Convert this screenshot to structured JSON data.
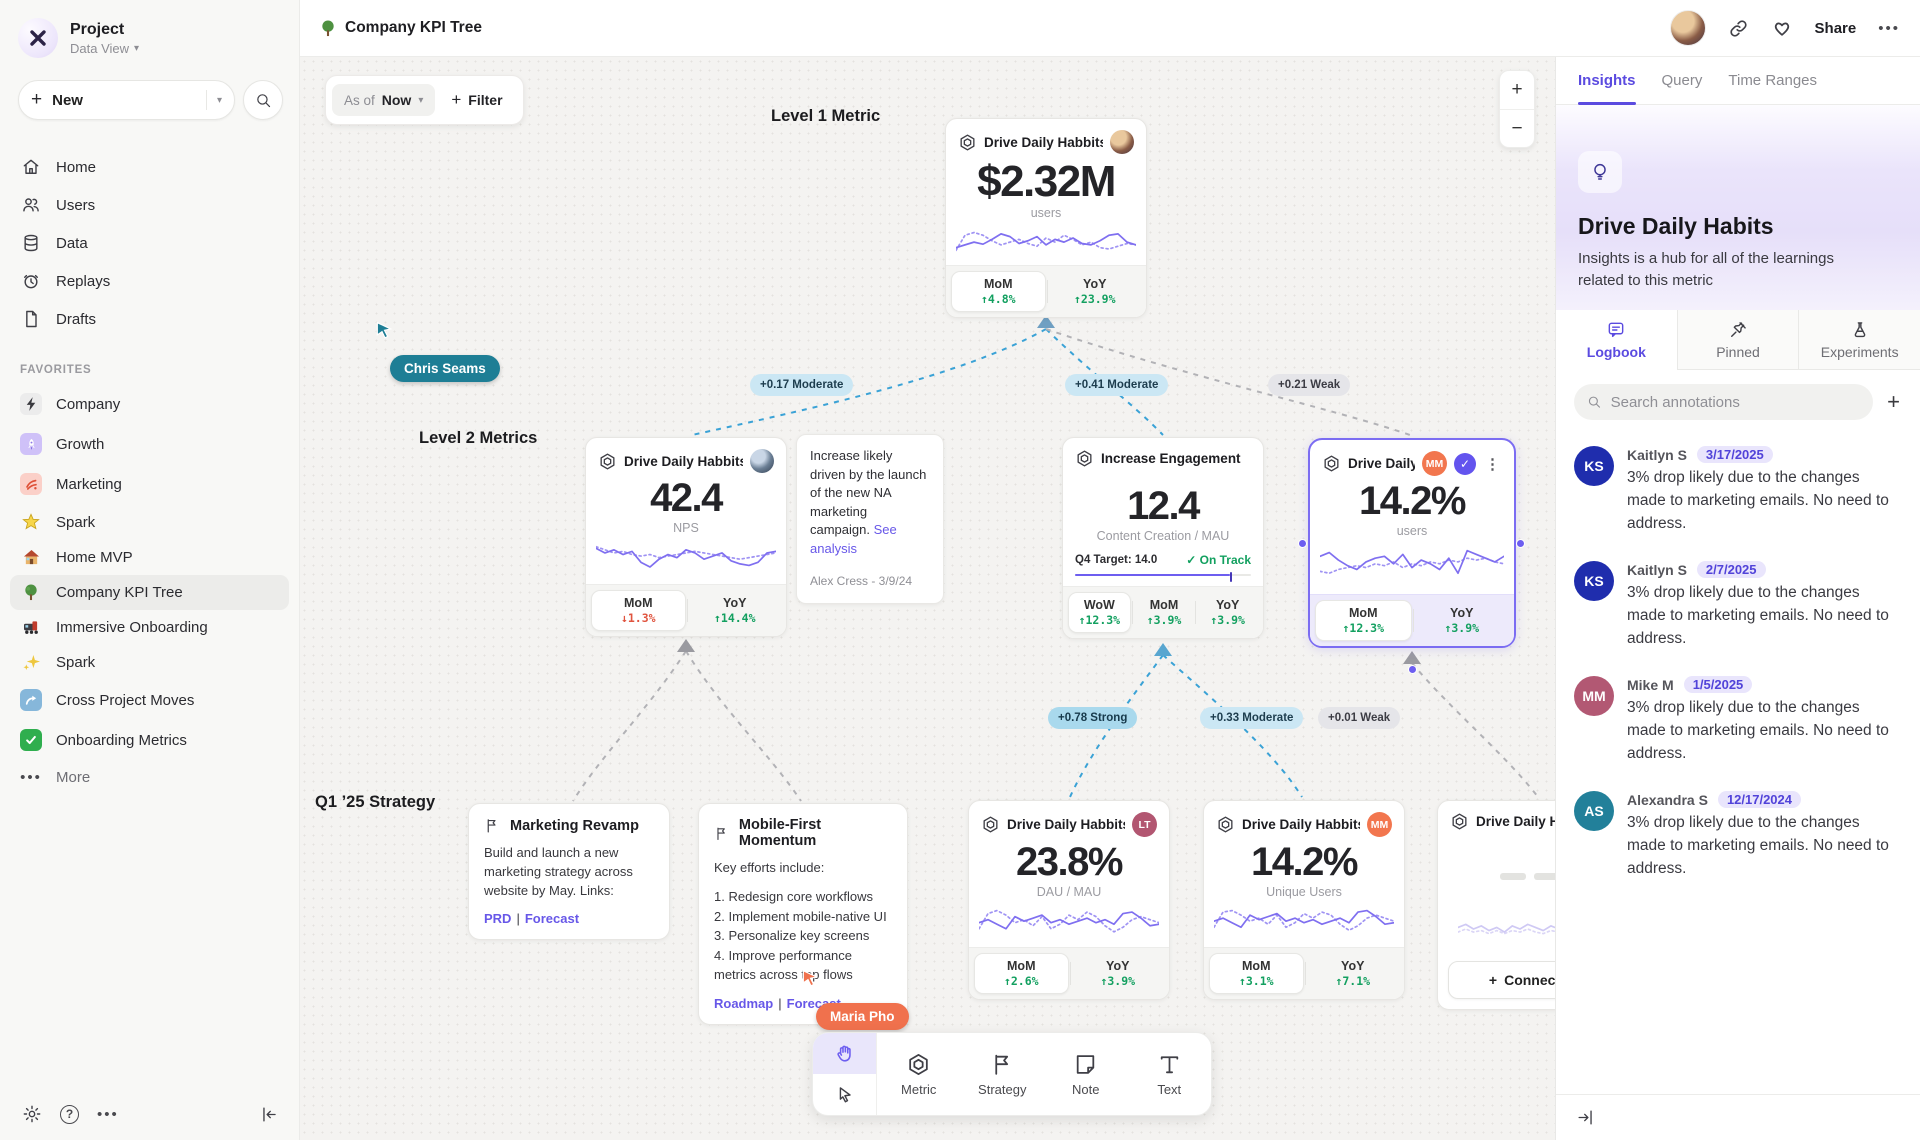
{
  "sidebar": {
    "project_name": "Project",
    "project_view": "Data View",
    "new_label": "New",
    "nav": [
      {
        "label": "Home"
      },
      {
        "label": "Users"
      },
      {
        "label": "Data"
      },
      {
        "label": "Replays"
      },
      {
        "label": "Drafts"
      }
    ],
    "favorites_label": "FAVORITES",
    "favorites": [
      {
        "label": "Company"
      },
      {
        "label": "Growth"
      },
      {
        "label": "Marketing"
      },
      {
        "label": "Spark"
      },
      {
        "label": "Home MVP"
      },
      {
        "label": "Company KPI Tree"
      },
      {
        "label": "Immersive Onboarding"
      },
      {
        "label": "Spark"
      },
      {
        "label": "Cross Project Moves"
      },
      {
        "label": "Onboarding Metrics"
      }
    ],
    "more_label": "More"
  },
  "topbar": {
    "title": "Company KPI Tree",
    "share_label": "Share"
  },
  "canvas": {
    "asof_prefix": "As of",
    "asof_value": "Now",
    "filter_label": "Filter",
    "zoom_in": "+",
    "zoom_out": "−",
    "link_separator": "|",
    "labels": {
      "level1": "Level 1 Metric",
      "level2": "Level 2 Metrics",
      "strategy": "Q1 ’25 Strategy"
    },
    "cursors": [
      {
        "name": "Chris Seams",
        "color": "#1e7e95"
      },
      {
        "name": "Maria Pho",
        "color": "#f0714d"
      }
    ],
    "edge_labels": [
      "+0.17 Moderate",
      "+0.41 Moderate",
      "+0.21 Weak",
      "+0.78 Strong",
      "+0.33 Moderate",
      "+0.01 Weak"
    ],
    "cards": {
      "level1": {
        "title": "Drive Daily Habbits",
        "value": "$2.32M",
        "unit": "users",
        "stats": [
          {
            "label": "MoM",
            "change": "↑4.8%"
          },
          {
            "label": "YoY",
            "change": "↑23.9%"
          }
        ],
        "spark": {
          "solid": [
            30,
            26,
            22,
            25,
            18,
            10,
            14,
            24,
            20,
            14,
            26,
            18,
            22,
            16,
            24,
            26,
            20,
            12,
            10,
            22,
            26
          ],
          "dotted": [
            34,
            12,
            8,
            12,
            20,
            26,
            22,
            18,
            24,
            28,
            16,
            22,
            12,
            18,
            26,
            22,
            30,
            32,
            28,
            24,
            26
          ]
        }
      },
      "nps": {
        "title": "Drive Daily Habbits",
        "value": "42.4",
        "unit": "NPS",
        "stats": [
          {
            "label": "MoM",
            "change": "↓1.3%"
          },
          {
            "label": "YoY",
            "change": "↑14.4%"
          }
        ],
        "spark": {
          "solid": [
            8,
            14,
            10,
            16,
            12,
            26,
            32,
            22,
            16,
            20,
            10,
            14,
            22,
            18,
            14,
            24,
            28,
            30,
            26,
            14,
            12
          ],
          "dotted": [
            6,
            10,
            14,
            12,
            16,
            18,
            16,
            20,
            18,
            16,
            14,
            12,
            14,
            16,
            18,
            20,
            22,
            20,
            18,
            16,
            14
          ]
        }
      },
      "engagement": {
        "title": "Increase Engagement",
        "value": "12.4",
        "unit": "Content Creation / MAU",
        "target": "Q4 Target: 14.0",
        "status": "✓ On Track",
        "stats": [
          {
            "label": "WoW",
            "change": "↑12.3%"
          },
          {
            "label": "MoM",
            "change": "↑3.9%"
          },
          {
            "label": "YoY",
            "change": "↑3.9%"
          }
        ]
      },
      "selected": {
        "title": "Drive Daily Habb..",
        "badge": "MM",
        "value": "14.2%",
        "unit": "users",
        "stats": [
          {
            "label": "MoM",
            "change": "↑12.3%"
          },
          {
            "label": "YoY",
            "change": "↑3.9%"
          }
        ],
        "spark": {
          "solid": [
            12,
            8,
            16,
            22,
            26,
            18,
            14,
            12,
            20,
            10,
            24,
            16,
            20,
            26,
            14,
            30,
            6,
            10,
            14,
            18,
            12
          ],
          "dotted": [
            28,
            30,
            26,
            24,
            22,
            24,
            20,
            22,
            18,
            24,
            20,
            22,
            18,
            20,
            16,
            18,
            14,
            16,
            14,
            18,
            20
          ]
        }
      },
      "dau": {
        "title": "Drive Daily Habbits",
        "badge": "LT",
        "value": "23.8%",
        "unit": "DAU / MAU",
        "stats": [
          {
            "label": "MoM",
            "change": "↑2.6%"
          },
          {
            "label": "YoY",
            "change": "↑3.9%"
          }
        ],
        "spark": {
          "solid": [
            22,
            18,
            24,
            30,
            14,
            20,
            16,
            12,
            22,
            18,
            24,
            20,
            16,
            22,
            18,
            24,
            10,
            8,
            16,
            26,
            24
          ],
          "dotted": [
            30,
            10,
            6,
            12,
            22,
            18,
            26,
            14,
            30,
            24,
            12,
            18,
            8,
            14,
            26,
            34,
            28,
            18,
            14,
            18,
            22
          ]
        }
      },
      "unique": {
        "title": "Drive Daily Habbits",
        "badge": "MM",
        "value": "14.2%",
        "unit": "Unique Users",
        "stats": [
          {
            "label": "MoM",
            "change": "↑3.1%"
          },
          {
            "label": "YoY",
            "change": "↑7.1%"
          }
        ],
        "spark": {
          "solid": [
            20,
            16,
            22,
            28,
            12,
            18,
            14,
            10,
            20,
            16,
            22,
            18,
            24,
            20,
            16,
            22,
            8,
            6,
            14,
            24,
            22
          ],
          "dotted": [
            28,
            8,
            6,
            12,
            20,
            16,
            24,
            12,
            28,
            22,
            10,
            16,
            8,
            12,
            24,
            32,
            26,
            16,
            12,
            16,
            20
          ]
        }
      },
      "connect": {
        "title": "Drive Daily Hab",
        "connect_label": "Connect",
        "spark": {
          "solid": [
            20,
            16,
            22,
            18,
            24,
            20,
            26,
            18,
            22,
            16,
            20,
            24,
            18,
            22,
            16,
            20,
            24,
            20,
            16,
            22,
            18
          ],
          "dotted": [
            26,
            22,
            26,
            24,
            28,
            24,
            28,
            24,
            26,
            22,
            26,
            28,
            24,
            26,
            22,
            26,
            28,
            26,
            22,
            26,
            24
          ]
        }
      }
    },
    "note": {
      "text": "Increase likely driven by the launch of the new NA marketing campaign.",
      "link": "See analysis",
      "author": "Alex Cress - 3/9/24"
    },
    "strategies": [
      {
        "title": "Marketing Revamp",
        "body": "Build and launch a new marketing strategy across website by May. Links:",
        "links": [
          "PRD",
          "Forecast"
        ]
      },
      {
        "title": "Mobile-First Momentum",
        "body": "Key efforts include:",
        "items": [
          "1. Redesign core workflows",
          "2. Implement mobile-native UI",
          "3. Personalize key screens",
          "4. Improve performance metrics across top flows"
        ],
        "links": [
          "Roadmap",
          "Forecast"
        ]
      }
    ],
    "toolbar": {
      "tools": [
        {
          "label": "Metric"
        },
        {
          "label": "Strategy"
        },
        {
          "label": "Note"
        },
        {
          "label": "Text"
        }
      ]
    }
  },
  "panel": {
    "tabs": [
      "Insights",
      "Query",
      "Time Ranges"
    ],
    "title": "Drive Daily Habits",
    "description": "Insights is a hub for all of the learnings related to this metric",
    "subtabs": [
      "Logbook",
      "Pinned",
      "Experiments"
    ],
    "search_placeholder": "Search annotations",
    "add_label": "+",
    "annotations": [
      {
        "initials": "KS",
        "color": "#1f2dad",
        "name": "Kaitlyn S",
        "date": "3/17/2025",
        "body": "3% drop likely due to the changes made to marketing emails. No need to address."
      },
      {
        "initials": "KS",
        "color": "#1f2dad",
        "name": "Kaitlyn S",
        "date": "2/7/2025",
        "body": "3% drop likely due to the changes made to marketing emails. No need to address."
      },
      {
        "initials": "MM",
        "color": "#b25873",
        "name": "Mike M",
        "date": "1/5/2025",
        "body": "3% drop likely due to the changes made to marketing emails. No need to address."
      },
      {
        "initials": "AS",
        "color": "#22809a",
        "name": "Alexandra S",
        "date": "12/17/2024",
        "body": "3% drop likely due to the changes made to marketing emails. No need to address."
      }
    ]
  }
}
